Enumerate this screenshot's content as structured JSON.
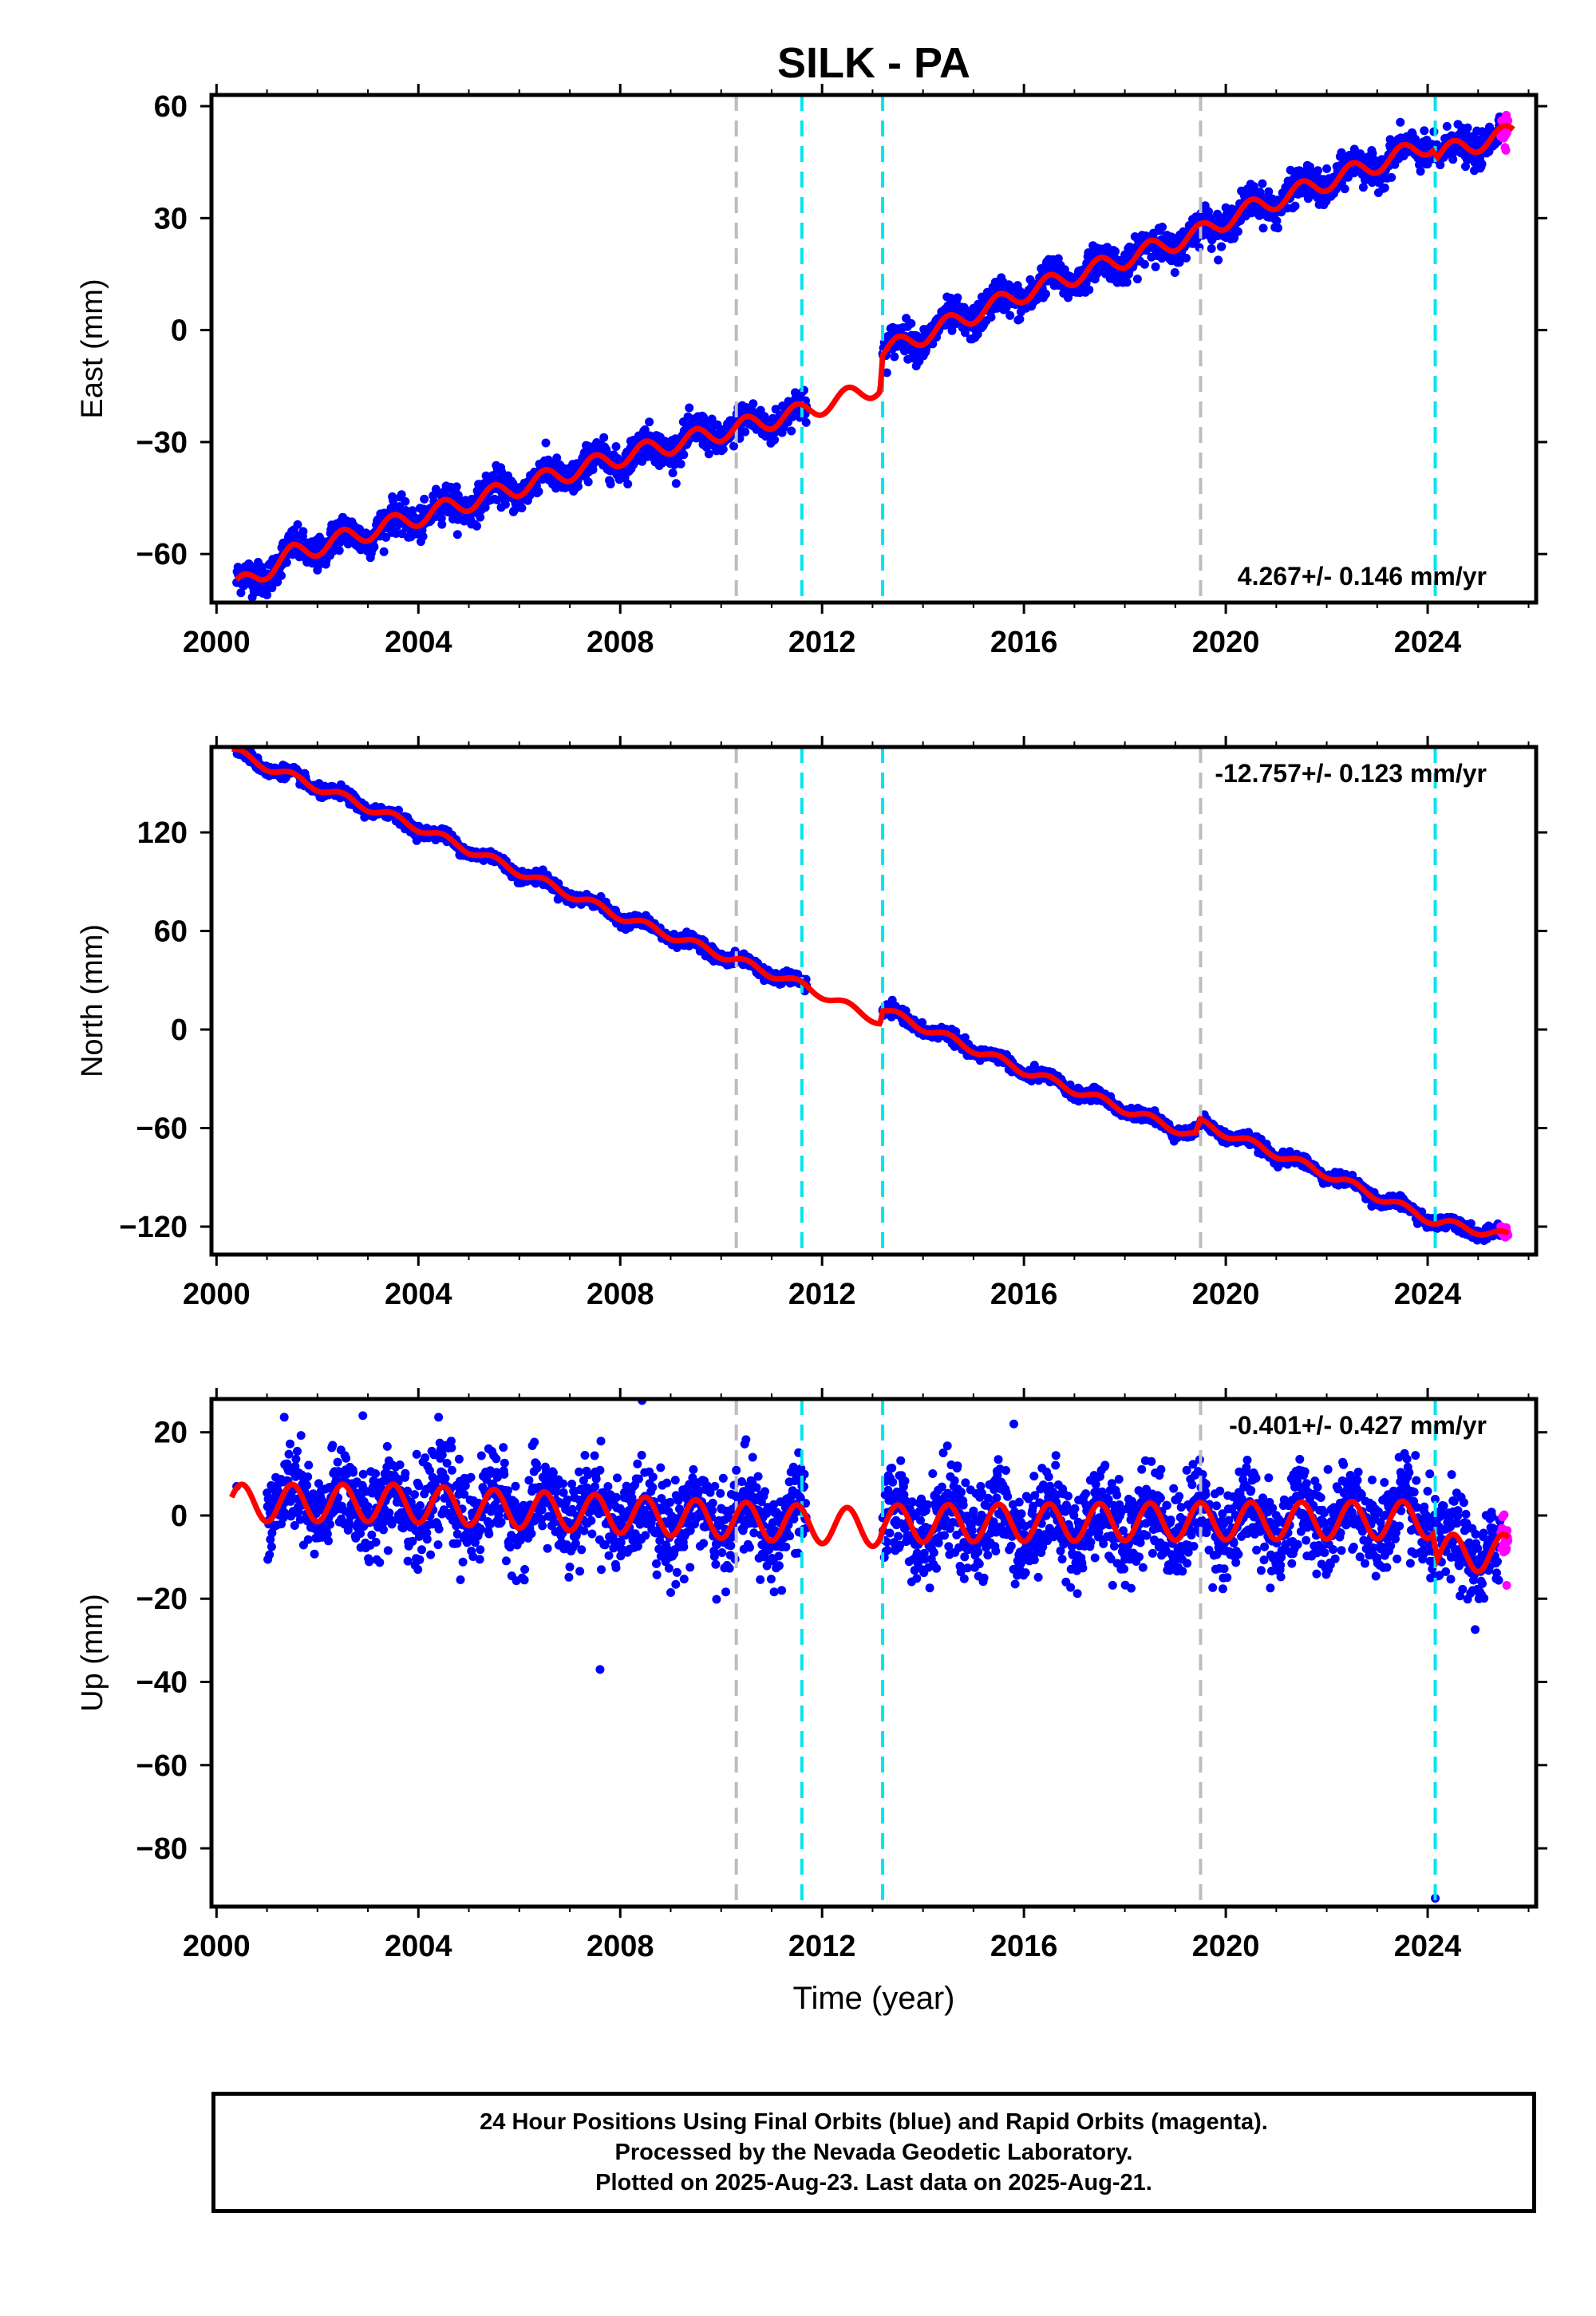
{
  "title": "SILK - PA",
  "colors": {
    "final_orbits": "#0000ff",
    "rapid_orbits": "#ff00ff",
    "model": "#ff0000",
    "equipment_change_line": "#bdbdbd",
    "earthquake_line": "#00e5ee"
  },
  "chart_data": [
    {
      "type": "scatter",
      "name": "east-panel",
      "ylabel": "East (mm)",
      "xlabel": "",
      "xlim": [
        1999.9,
        2026.15
      ],
      "ylim": [
        -73,
        63
      ],
      "xticks": [
        2000,
        2004,
        2008,
        2012,
        2016,
        2020,
        2024
      ],
      "yticks": [
        -60,
        -30,
        0,
        30,
        60
      ],
      "rate_label": "4.267+/- 0.146 mm/yr",
      "rate_label_position": "bottom-right",
      "vertical_lines": [
        {
          "x": 2010.3,
          "kind": "equipment"
        },
        {
          "x": 2011.6,
          "kind": "earthquake"
        },
        {
          "x": 2013.2,
          "kind": "earthquake"
        },
        {
          "x": 2019.5,
          "kind": "equipment"
        },
        {
          "x": 2024.15,
          "kind": "earthquake"
        }
      ],
      "trend_knots": [
        [
          2000.4,
          -69
        ],
        [
          2001.5,
          -60
        ],
        [
          2002.5,
          -56
        ],
        [
          2005,
          -46
        ],
        [
          2008,
          -34
        ],
        [
          2011.6,
          -22
        ],
        [
          2013.15,
          -15
        ],
        [
          2013.2,
          -6
        ],
        [
          2016,
          10
        ],
        [
          2019.5,
          26
        ],
        [
          2020.2,
          31
        ],
        [
          2024.1,
          50
        ],
        [
          2024.2,
          47
        ],
        [
          2025.7,
          53
        ]
      ],
      "seasonal_amplitude": 2.5,
      "gaps": [
        [
          2011.7,
          2013.2
        ]
      ],
      "data_start": 2000.4,
      "data_end": 2025.6,
      "rapid_start": 2025.45,
      "scatter_noise": 2.2
    },
    {
      "type": "scatter",
      "name": "north-panel",
      "ylabel": "North (mm)",
      "xlabel": "",
      "xlim": [
        1999.9,
        2026.15
      ],
      "ylim": [
        -137,
        172
      ],
      "xticks": [
        2000,
        2004,
        2008,
        2012,
        2016,
        2020,
        2024
      ],
      "yticks": [
        -120,
        -60,
        0,
        60,
        120
      ],
      "rate_label": "-12.757+/- 0.123 mm/yr",
      "rate_label_position": "top-right",
      "vertical_lines": [
        {
          "x": 2010.3,
          "kind": "equipment"
        },
        {
          "x": 2011.6,
          "kind": "earthquake"
        },
        {
          "x": 2013.2,
          "kind": "earthquake"
        },
        {
          "x": 2019.5,
          "kind": "equipment"
        },
        {
          "x": 2024.15,
          "kind": "earthquake"
        }
      ],
      "trend_knots": [
        [
          2000.3,
          170
        ],
        [
          2001,
          160
        ],
        [
          2004,
          123
        ],
        [
          2008,
          69
        ],
        [
          2011.6,
          27
        ],
        [
          2013.15,
          5
        ],
        [
          2013.2,
          12
        ],
        [
          2016,
          -25
        ],
        [
          2019.4,
          -65
        ],
        [
          2019.5,
          -57
        ],
        [
          2022,
          -88
        ],
        [
          2024.15,
          -117
        ],
        [
          2025.6,
          -126
        ]
      ],
      "seasonal_amplitude": 2.5,
      "gaps": [
        [
          2011.7,
          2013.2
        ]
      ],
      "data_start": 2000.4,
      "data_end": 2025.6,
      "rapid_start": 2025.45,
      "scatter_noise": 1.8
    },
    {
      "type": "scatter",
      "name": "up-panel",
      "ylabel": "Up (mm)",
      "xlabel": "Time (year)",
      "xlim": [
        1999.9,
        2026.15
      ],
      "ylim": [
        -94,
        28
      ],
      "xticks": [
        2000,
        2004,
        2008,
        2012,
        2016,
        2020,
        2024
      ],
      "yticks": [
        -80,
        -60,
        -40,
        -20,
        0,
        20
      ],
      "rate_label": "-0.401+/- 0.427 mm/yr",
      "rate_label_position": "top-right",
      "vertical_lines": [
        {
          "x": 2010.3,
          "kind": "equipment"
        },
        {
          "x": 2011.6,
          "kind": "earthquake"
        },
        {
          "x": 2013.2,
          "kind": "earthquake"
        },
        {
          "x": 2019.5,
          "kind": "equipment"
        },
        {
          "x": 2024.15,
          "kind": "earthquake"
        }
      ],
      "trend_knots": [
        [
          2000.3,
          3
        ],
        [
          2003.5,
          3
        ],
        [
          2011.6,
          -2
        ],
        [
          2013.15,
          -3
        ],
        [
          2013.2,
          -2
        ],
        [
          2024.1,
          -1
        ],
        [
          2024.2,
          -9
        ],
        [
          2025.6,
          -9
        ]
      ],
      "seasonal_amplitude": 4.5,
      "gaps": [
        [
          2011.7,
          2013.2
        ]
      ],
      "data_start": 2001.0,
      "data_end": 2025.6,
      "rapid_start": 2025.45,
      "scatter_noise": 5.5,
      "outliers": [
        [
          2000.4,
          7
        ],
        [
          2002.9,
          24
        ],
        [
          2007.6,
          -37
        ],
        [
          2011.2,
          -18
        ],
        [
          2024.15,
          -92
        ],
        [
          2015.8,
          22
        ]
      ]
    }
  ],
  "footer": {
    "line1": "24 Hour Positions Using Final Orbits (blue) and Rapid Orbits (magenta).",
    "line2": "Processed by the Nevada Geodetic Laboratory.",
    "line3": "Plotted on 2025-Aug-23. Last data on 2025-Aug-21."
  }
}
